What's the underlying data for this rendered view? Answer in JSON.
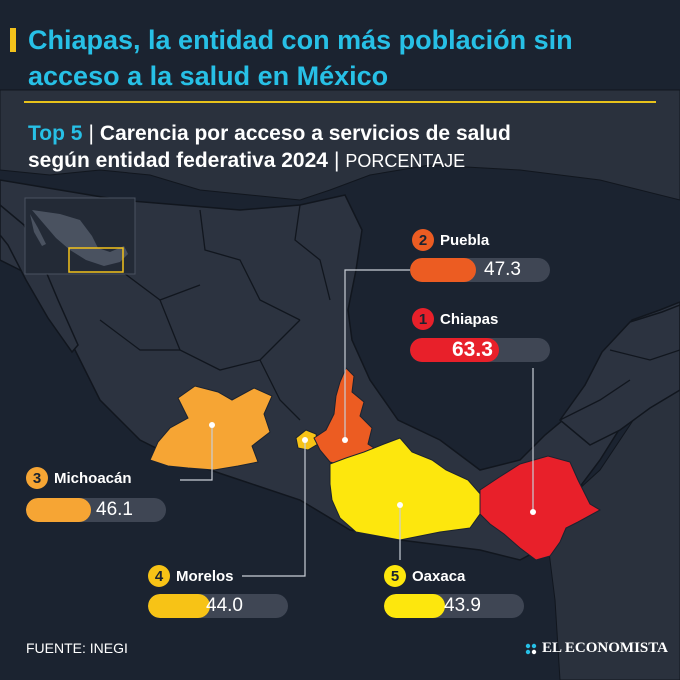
{
  "header": {
    "title": "Chiapas, la entidad con más población sin acceso a la salud en México",
    "subtitle_lead": "Top 5",
    "subtitle_part1": "Carencia por acceso a servicios de salud",
    "subtitle_part2": "según entidad federativa 2024",
    "unit": "PORCENTAJE"
  },
  "colors": {
    "background": "#1b2330",
    "title": "#27c0e6",
    "accent_line": "#e8c21b",
    "track": "#3f4654",
    "mexico_land": "#2c3340",
    "other_land": "#2a313d"
  },
  "rank_scale": {
    "min": 0,
    "max": 100
  },
  "ranking": [
    {
      "rank": "2",
      "state": "Puebla",
      "value": 47.3,
      "value_text": "47.3",
      "color": "#ec5c22"
    },
    {
      "rank": "1",
      "state": "Chiapas",
      "value": 63.3,
      "value_text": "63.3",
      "color": "#e8202a"
    },
    {
      "rank": "3",
      "state": "Michoacán",
      "value": 46.1,
      "value_text": "46.1",
      "color": "#f6a534"
    },
    {
      "rank": "4",
      "state": "Morelos",
      "value": 44.0,
      "value_text": "44.0",
      "color": "#f7c316"
    },
    {
      "rank": "5",
      "state": "Oaxaca",
      "value": 43.9,
      "value_text": "43.9",
      "color": "#fde70d"
    }
  ],
  "footer": {
    "source": "FUENTE: INEGI",
    "brand": "EL ECONOMISTA"
  }
}
